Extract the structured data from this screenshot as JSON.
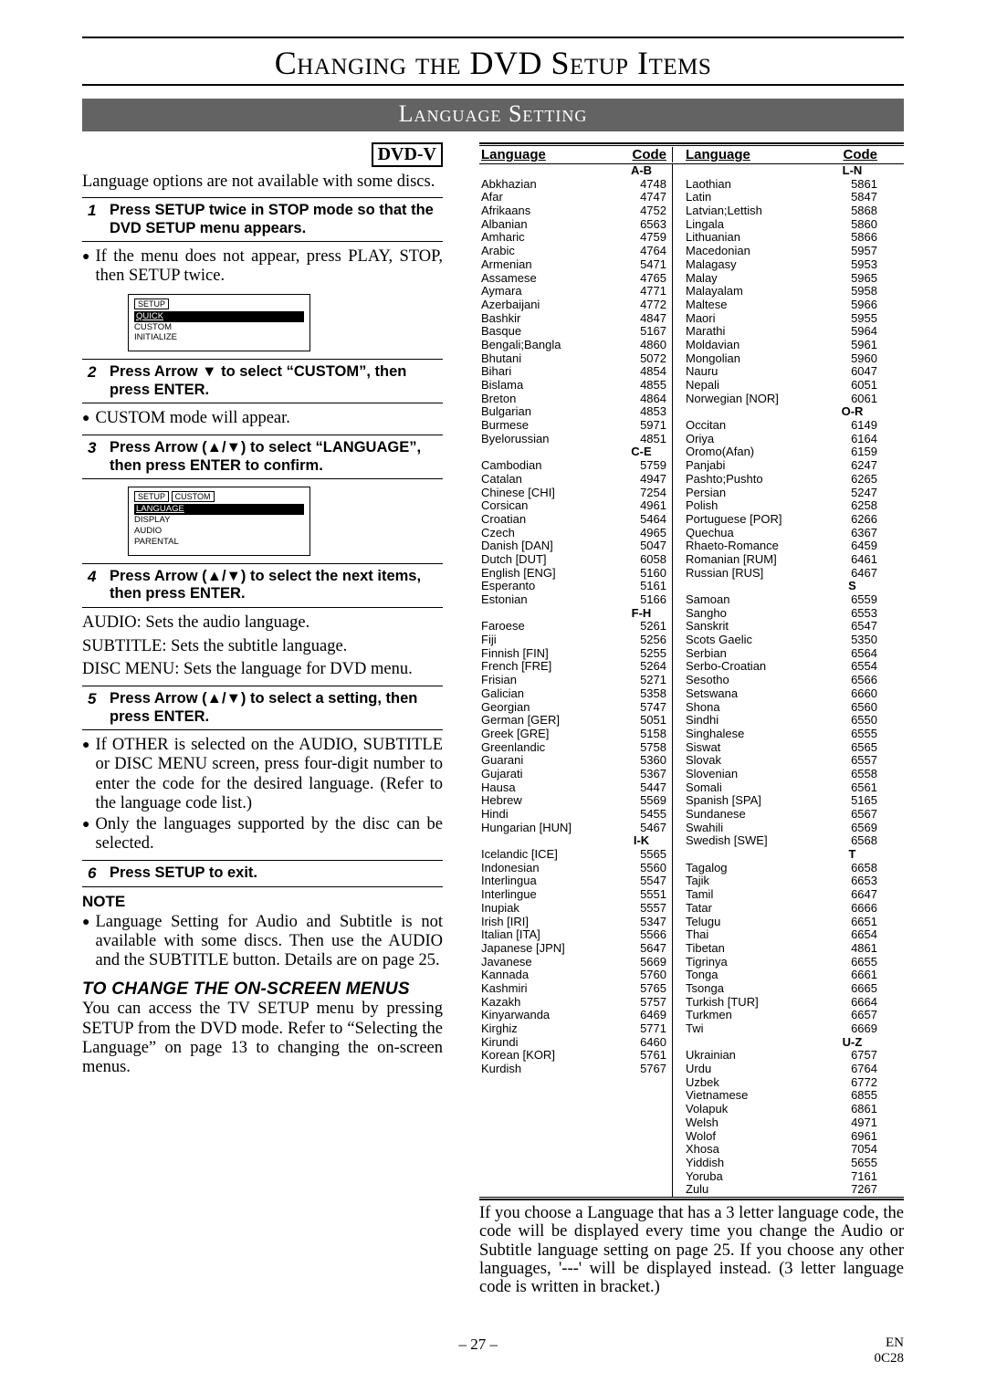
{
  "title": "Changing the DVD Setup Items",
  "section": "Language Setting",
  "dvd_tag": "DVD-V",
  "intro": "Language options are not available with some discs.",
  "steps": {
    "s1": "Press SETUP twice in STOP mode so that the DVD SETUP menu appears.",
    "s1b": "If the menu does not appear, press PLAY, STOP, then SETUP twice.",
    "s2": "Press Arrow ▼ to select “CUSTOM”, then press ENTER.",
    "s2b": "CUSTOM mode will appear.",
    "s3": "Press Arrow (▲/▼) to select “LANGUAGE”, then press ENTER to confirm.",
    "s4": "Press Arrow (▲/▼) to select the next items, then press ENTER.",
    "s5": "Press Arrow (▲/▼) to select a setting, then press ENTER.",
    "s5b1": "If OTHER is selected on the AUDIO, SUBTITLE or DISC MENU screen, press four-digit number to enter the code for the desired language. (Refer to the language code list.)",
    "s5b2": "Only the languages supported by the disc can be selected.",
    "s6": "Press SETUP to exit."
  },
  "desc": {
    "audio": "Sets the audio language.",
    "subtitle": "Sets the subtitle language.",
    "discmenu": "Sets the language for DVD menu."
  },
  "diagram1": {
    "setup": "SETUP",
    "items": [
      "QUICK",
      "CUSTOM",
      "INITIALIZE"
    ]
  },
  "diagram2": {
    "setup": "SETUP",
    "custom": "CUSTOM",
    "items": [
      "LANGUAGE",
      "DISPLAY",
      "AUDIO",
      "PARENTAL"
    ]
  },
  "note_hdr": "NOTE",
  "note": "Language Setting for Audio and Subtitle is not available with some discs. Then use the AUDIO and the SUBTITLE button. Details are on page 25.",
  "onscreen_hdr": "TO CHANGE THE ON-SCREEN MENUS",
  "onscreen": "You can access the TV SETUP menu by pressing SETUP from the DVD mode. Refer to “Selecting the Language” on page 13 to changing the on-screen menus.",
  "table": {
    "h1": "Language",
    "h2": "Code",
    "h3": "Language",
    "h4": "Code",
    "left": [
      {
        "h": "A-B"
      },
      {
        "n": "Abkhazian",
        "c": "4748"
      },
      {
        "n": "Afar",
        "c": "4747"
      },
      {
        "n": "Afrikaans",
        "c": "4752"
      },
      {
        "n": "Albanian",
        "c": "6563"
      },
      {
        "n": "Amharic",
        "c": "4759"
      },
      {
        "n": "Arabic",
        "c": "4764"
      },
      {
        "n": "Armenian",
        "c": "5471"
      },
      {
        "n": "Assamese",
        "c": "4765"
      },
      {
        "n": "Aymara",
        "c": "4771"
      },
      {
        "n": "Azerbaijani",
        "c": "4772"
      },
      {
        "n": "Bashkir",
        "c": "4847"
      },
      {
        "n": "Basque",
        "c": "5167"
      },
      {
        "n": "Bengali;Bangla",
        "c": "4860"
      },
      {
        "n": "Bhutani",
        "c": "5072"
      },
      {
        "n": "Bihari",
        "c": "4854"
      },
      {
        "n": "Bislama",
        "c": "4855"
      },
      {
        "n": "Breton",
        "c": "4864"
      },
      {
        "n": "Bulgarian",
        "c": "4853"
      },
      {
        "n": "Burmese",
        "c": "5971"
      },
      {
        "n": "Byelorussian",
        "c": "4851"
      },
      {
        "h": "C-E"
      },
      {
        "n": "Cambodian",
        "c": "5759"
      },
      {
        "n": "Catalan",
        "c": "4947"
      },
      {
        "n": "Chinese [CHI]",
        "c": "7254"
      },
      {
        "n": "Corsican",
        "c": "4961"
      },
      {
        "n": "Croatian",
        "c": "5464"
      },
      {
        "n": "Czech",
        "c": "4965"
      },
      {
        "n": "Danish [DAN]",
        "c": "5047"
      },
      {
        "n": "Dutch [DUT]",
        "c": "6058"
      },
      {
        "n": "English [ENG]",
        "c": "5160"
      },
      {
        "n": "Esperanto",
        "c": "5161"
      },
      {
        "n": "Estonian",
        "c": "5166"
      },
      {
        "h": "F-H"
      },
      {
        "n": "Faroese",
        "c": "5261"
      },
      {
        "n": "Fiji",
        "c": "5256"
      },
      {
        "n": "Finnish [FIN]",
        "c": "5255"
      },
      {
        "n": "French [FRE]",
        "c": "5264"
      },
      {
        "n": "Frisian",
        "c": "5271"
      },
      {
        "n": "Galician",
        "c": "5358"
      },
      {
        "n": "Georgian",
        "c": "5747"
      },
      {
        "n": "German [GER]",
        "c": "5051"
      },
      {
        "n": "Greek [GRE]",
        "c": "5158"
      },
      {
        "n": "Greenlandic",
        "c": "5758"
      },
      {
        "n": "Guarani",
        "c": "5360"
      },
      {
        "n": "Gujarati",
        "c": "5367"
      },
      {
        "n": "Hausa",
        "c": "5447"
      },
      {
        "n": "Hebrew",
        "c": "5569"
      },
      {
        "n": "Hindi",
        "c": "5455"
      },
      {
        "n": "Hungarian [HUN]",
        "c": "5467"
      },
      {
        "h": "I-K"
      },
      {
        "n": "Icelandic [ICE]",
        "c": "5565"
      },
      {
        "n": "Indonesian",
        "c": "5560"
      },
      {
        "n": "Interlingua",
        "c": "5547"
      },
      {
        "n": "Interlingue",
        "c": "5551"
      },
      {
        "n": "Inupiak",
        "c": "5557"
      },
      {
        "n": "Irish [IRI]",
        "c": "5347"
      },
      {
        "n": "Italian [ITA]",
        "c": "5566"
      },
      {
        "n": "Japanese [JPN]",
        "c": "5647"
      },
      {
        "n": "Javanese",
        "c": "5669"
      },
      {
        "n": "Kannada",
        "c": "5760"
      },
      {
        "n": "Kashmiri",
        "c": "5765"
      },
      {
        "n": "Kazakh",
        "c": "5757"
      },
      {
        "n": "Kinyarwanda",
        "c": "6469"
      },
      {
        "n": "Kirghiz",
        "c": "5771"
      },
      {
        "n": "Kirundi",
        "c": "6460"
      },
      {
        "n": "Korean [KOR]",
        "c": "5761"
      },
      {
        "n": "Kurdish",
        "c": "5767"
      }
    ],
    "right": [
      {
        "h": "L-N"
      },
      {
        "n": "Laothian",
        "c": "5861"
      },
      {
        "n": "Latin",
        "c": "5847"
      },
      {
        "n": "Latvian;Lettish",
        "c": "5868"
      },
      {
        "n": "Lingala",
        "c": "5860"
      },
      {
        "n": "Lithuanian",
        "c": "5866"
      },
      {
        "n": "Macedonian",
        "c": "5957"
      },
      {
        "n": "Malagasy",
        "c": "5953"
      },
      {
        "n": "Malay",
        "c": "5965"
      },
      {
        "n": "Malayalam",
        "c": "5958"
      },
      {
        "n": "Maltese",
        "c": "5966"
      },
      {
        "n": "Maori",
        "c": "5955"
      },
      {
        "n": "Marathi",
        "c": "5964"
      },
      {
        "n": "Moldavian",
        "c": "5961"
      },
      {
        "n": "Mongolian",
        "c": "5960"
      },
      {
        "n": "Nauru",
        "c": "6047"
      },
      {
        "n": "Nepali",
        "c": "6051"
      },
      {
        "n": "Norwegian [NOR]",
        "c": "6061"
      },
      {
        "h": "O-R"
      },
      {
        "n": "Occitan",
        "c": "6149"
      },
      {
        "n": "Oriya",
        "c": "6164"
      },
      {
        "n": "Oromo(Afan)",
        "c": "6159"
      },
      {
        "n": "Panjabi",
        "c": "6247"
      },
      {
        "n": "Pashto;Pushto",
        "c": "6265"
      },
      {
        "n": "Persian",
        "c": "5247"
      },
      {
        "n": "Polish",
        "c": "6258"
      },
      {
        "n": "Portuguese [POR]",
        "c": "6266"
      },
      {
        "n": "Quechua",
        "c": "6367"
      },
      {
        "n": "Rhaeto-Romance",
        "c": "6459"
      },
      {
        "n": "Romanian [RUM]",
        "c": "6461"
      },
      {
        "n": "Russian [RUS]",
        "c": "6467"
      },
      {
        "h": "S"
      },
      {
        "n": "Samoan",
        "c": "6559"
      },
      {
        "n": "Sangho",
        "c": "6553"
      },
      {
        "n": "Sanskrit",
        "c": "6547"
      },
      {
        "n": "Scots Gaelic",
        "c": "5350"
      },
      {
        "n": "Serbian",
        "c": "6564"
      },
      {
        "n": "Serbo-Croatian",
        "c": "6554"
      },
      {
        "n": "Sesotho",
        "c": "6566"
      },
      {
        "n": "Setswana",
        "c": "6660"
      },
      {
        "n": "Shona",
        "c": "6560"
      },
      {
        "n": "Sindhi",
        "c": "6550"
      },
      {
        "n": "Singhalese",
        "c": "6555"
      },
      {
        "n": "Siswat",
        "c": "6565"
      },
      {
        "n": "Slovak",
        "c": "6557"
      },
      {
        "n": "Slovenian",
        "c": "6558"
      },
      {
        "n": "Somali",
        "c": "6561"
      },
      {
        "n": "Spanish [SPA]",
        "c": "5165"
      },
      {
        "n": "Sundanese",
        "c": "6567"
      },
      {
        "n": "Swahili",
        "c": "6569"
      },
      {
        "n": "Swedish [SWE]",
        "c": "6568"
      },
      {
        "h": "T"
      },
      {
        "n": "Tagalog",
        "c": "6658"
      },
      {
        "n": "Tajik",
        "c": "6653"
      },
      {
        "n": "Tamil",
        "c": "6647"
      },
      {
        "n": "Tatar",
        "c": "6666"
      },
      {
        "n": "Telugu",
        "c": "6651"
      },
      {
        "n": "Thai",
        "c": "6654"
      },
      {
        "n": "Tibetan",
        "c": "4861"
      },
      {
        "n": "Tigrinya",
        "c": "6655"
      },
      {
        "n": "Tonga",
        "c": "6661"
      },
      {
        "n": "Tsonga",
        "c": "6665"
      },
      {
        "n": "Turkish [TUR]",
        "c": "6664"
      },
      {
        "n": "Turkmen",
        "c": "6657"
      },
      {
        "n": "Twi",
        "c": "6669"
      },
      {
        "h": "U-Z"
      },
      {
        "n": "Ukrainian",
        "c": "6757"
      },
      {
        "n": "Urdu",
        "c": "6764"
      },
      {
        "n": "Uzbek",
        "c": "6772"
      },
      {
        "n": "Vietnamese",
        "c": "6855"
      },
      {
        "n": "Volapuk",
        "c": "6861"
      },
      {
        "n": "Welsh",
        "c": "4971"
      },
      {
        "n": "Wolof",
        "c": "6961"
      },
      {
        "n": "Xhosa",
        "c": "7054"
      },
      {
        "n": "Yiddish",
        "c": "5655"
      },
      {
        "n": "Yoruba",
        "c": "7161"
      },
      {
        "n": "Zulu",
        "c": "7267"
      }
    ]
  },
  "foot_para": "If you choose a Language that has a 3 letter language code, the code will be displayed every time you change the Audio or Subtitle language setting on page 25. If you choose any other languages, '---' will be displayed instead. (3 letter language code is written in bracket.)",
  "page_num": "– 27 –",
  "page_rt1": "EN",
  "page_rt2": "0C28"
}
